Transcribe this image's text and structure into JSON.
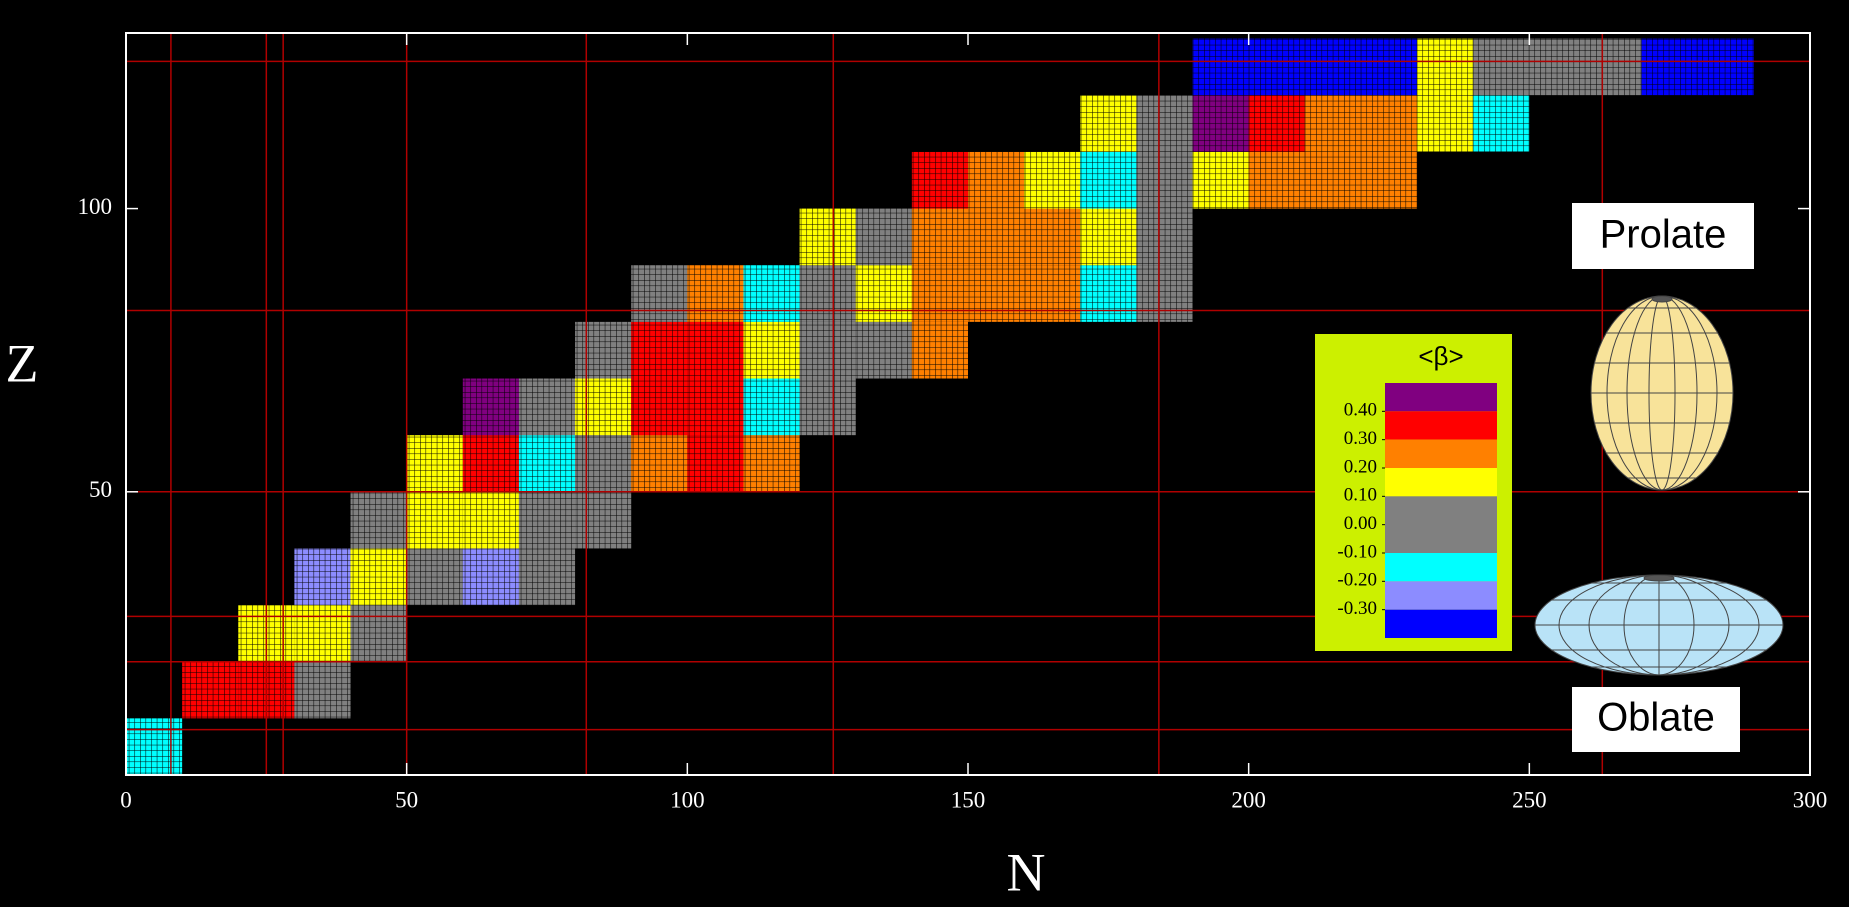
{
  "chart_data": {
    "type": "heatmap",
    "x_label": "N",
    "y_label": "Z",
    "xlim": [
      0,
      300
    ],
    "ylim": [
      0,
      131
    ],
    "xticks": [
      0,
      50,
      100,
      150,
      200,
      250,
      300
    ],
    "yticks": [
      50,
      100
    ],
    "xbins": [
      0,
      10,
      20,
      30,
      40,
      50,
      60,
      70,
      80,
      90,
      100,
      110,
      120,
      130,
      140,
      150,
      160,
      170,
      180,
      190,
      200,
      210,
      220,
      230,
      240,
      250,
      260,
      270,
      280,
      290
    ],
    "ybins": [
      0,
      10,
      20,
      30,
      40,
      50,
      60,
      70,
      80,
      90,
      100,
      110,
      120,
      130
    ],
    "values": [
      [
        -0.15,
        null,
        null,
        null,
        null,
        null,
        null,
        null,
        null,
        null,
        null,
        null,
        null,
        null,
        null,
        null,
        null,
        null,
        null,
        null,
        null,
        null,
        null,
        null,
        null,
        null,
        null,
        null,
        null
      ],
      [
        null,
        0.35,
        0.35,
        0,
        null,
        null,
        null,
        null,
        null,
        null,
        null,
        null,
        null,
        null,
        null,
        null,
        null,
        null,
        null,
        null,
        null,
        null,
        null,
        null,
        null,
        null,
        null,
        null,
        null
      ],
      [
        null,
        null,
        0.15,
        0.15,
        0,
        null,
        null,
        null,
        null,
        null,
        null,
        null,
        null,
        null,
        null,
        null,
        null,
        null,
        null,
        null,
        null,
        null,
        null,
        null,
        null,
        null,
        null,
        null,
        null
      ],
      [
        null,
        null,
        null,
        -0.25,
        0.15,
        0,
        -0.25,
        0,
        null,
        null,
        null,
        null,
        null,
        null,
        null,
        null,
        null,
        null,
        null,
        null,
        null,
        null,
        null,
        null,
        null,
        null,
        null,
        null,
        null
      ],
      [
        null,
        null,
        null,
        null,
        0,
        0.15,
        0.15,
        0,
        0,
        null,
        null,
        null,
        null,
        null,
        null,
        null,
        null,
        null,
        null,
        null,
        null,
        null,
        null,
        null,
        null,
        null,
        null,
        null,
        null
      ],
      [
        null,
        null,
        null,
        null,
        null,
        0.15,
        0.35,
        -0.15,
        0,
        0.25,
        0.35,
        0.25,
        null,
        null,
        null,
        null,
        null,
        null,
        null,
        null,
        null,
        null,
        null,
        null,
        null,
        null,
        null,
        null,
        null
      ],
      [
        null,
        null,
        null,
        null,
        null,
        null,
        0.45,
        0,
        0.15,
        0.35,
        0.35,
        -0.15,
        0,
        null,
        null,
        null,
        null,
        null,
        null,
        null,
        null,
        null,
        null,
        null,
        null,
        null,
        null,
        null,
        null
      ],
      [
        null,
        null,
        null,
        null,
        null,
        null,
        null,
        null,
        0,
        0.35,
        0.35,
        0.15,
        0,
        0,
        0.25,
        null,
        null,
        null,
        null,
        null,
        null,
        null,
        null,
        null,
        null,
        null,
        null,
        null,
        null
      ],
      [
        null,
        null,
        null,
        null,
        null,
        null,
        null,
        null,
        null,
        0,
        0.25,
        -0.15,
        0,
        0.15,
        0.25,
        0.25,
        0.25,
        -0.15,
        0,
        null,
        null,
        null,
        null,
        null,
        null,
        null,
        null,
        null,
        null
      ],
      [
        null,
        null,
        null,
        null,
        null,
        null,
        null,
        null,
        null,
        null,
        null,
        null,
        0.15,
        0,
        0.25,
        0.25,
        0.25,
        0.15,
        0,
        null,
        null,
        null,
        null,
        null,
        null,
        null,
        null,
        null,
        null
      ],
      [
        null,
        null,
        null,
        null,
        null,
        null,
        null,
        null,
        null,
        null,
        null,
        null,
        null,
        null,
        0.35,
        0.25,
        0.15,
        -0.15,
        0,
        0.15,
        0.25,
        0.25,
        0.25,
        null,
        null,
        null,
        null,
        null,
        null
      ],
      [
        null,
        null,
        null,
        null,
        null,
        null,
        null,
        null,
        null,
        null,
        null,
        null,
        null,
        null,
        null,
        null,
        null,
        0.15,
        0,
        0.45,
        0.35,
        0.25,
        0.25,
        0.15,
        -0.15,
        null,
        null,
        null,
        null
      ],
      [
        null,
        null,
        null,
        null,
        null,
        null,
        null,
        null,
        null,
        null,
        null,
        null,
        null,
        null,
        null,
        null,
        null,
        null,
        null,
        -0.35,
        -0.35,
        -0.35,
        -0.35,
        0.15,
        0,
        0,
        0,
        -0.35,
        -0.35
      ]
    ],
    "vlines": [
      8,
      25,
      28,
      50,
      82,
      126,
      184,
      263
    ],
    "hlines": [
      8,
      20,
      28,
      50,
      82,
      126
    ],
    "line_color": "#b00000",
    "legend": {
      "title": "<β>",
      "lim": [
        -0.4,
        0.5
      ],
      "background": "#ccf000",
      "ticks": [
        {
          "value": 0.4,
          "label": "0.40"
        },
        {
          "value": 0.3,
          "label": "0.30"
        },
        {
          "value": 0.2,
          "label": "0.20"
        },
        {
          "value": 0.1,
          "label": "0.10"
        },
        {
          "value": 0,
          "label": "0.00"
        },
        {
          "value": -0.1,
          "label": "-0.10"
        },
        {
          "value": -0.2,
          "label": "-0.20"
        },
        {
          "value": -0.3,
          "label": "-0.30"
        }
      ],
      "bands": [
        {
          "color": "#800080",
          "from": 0.4
        },
        {
          "color": "#ff0000",
          "from": 0.3,
          "to": 0.4
        },
        {
          "color": "#ff8000",
          "from": 0.2,
          "to": 0.3
        },
        {
          "color": "#ffff00",
          "from": 0.1,
          "to": 0.2
        },
        {
          "color": "#808080",
          "from": -0.1,
          "to": 0.1
        },
        {
          "color": "#00ffff",
          "from": -0.2,
          "to": -0.1
        },
        {
          "color": "#8c8cff",
          "from": -0.3,
          "to": -0.2
        },
        {
          "color": "#0000ff",
          "to": -0.3
        }
      ]
    },
    "annotations": [
      "Prolate",
      "Oblate"
    ]
  }
}
